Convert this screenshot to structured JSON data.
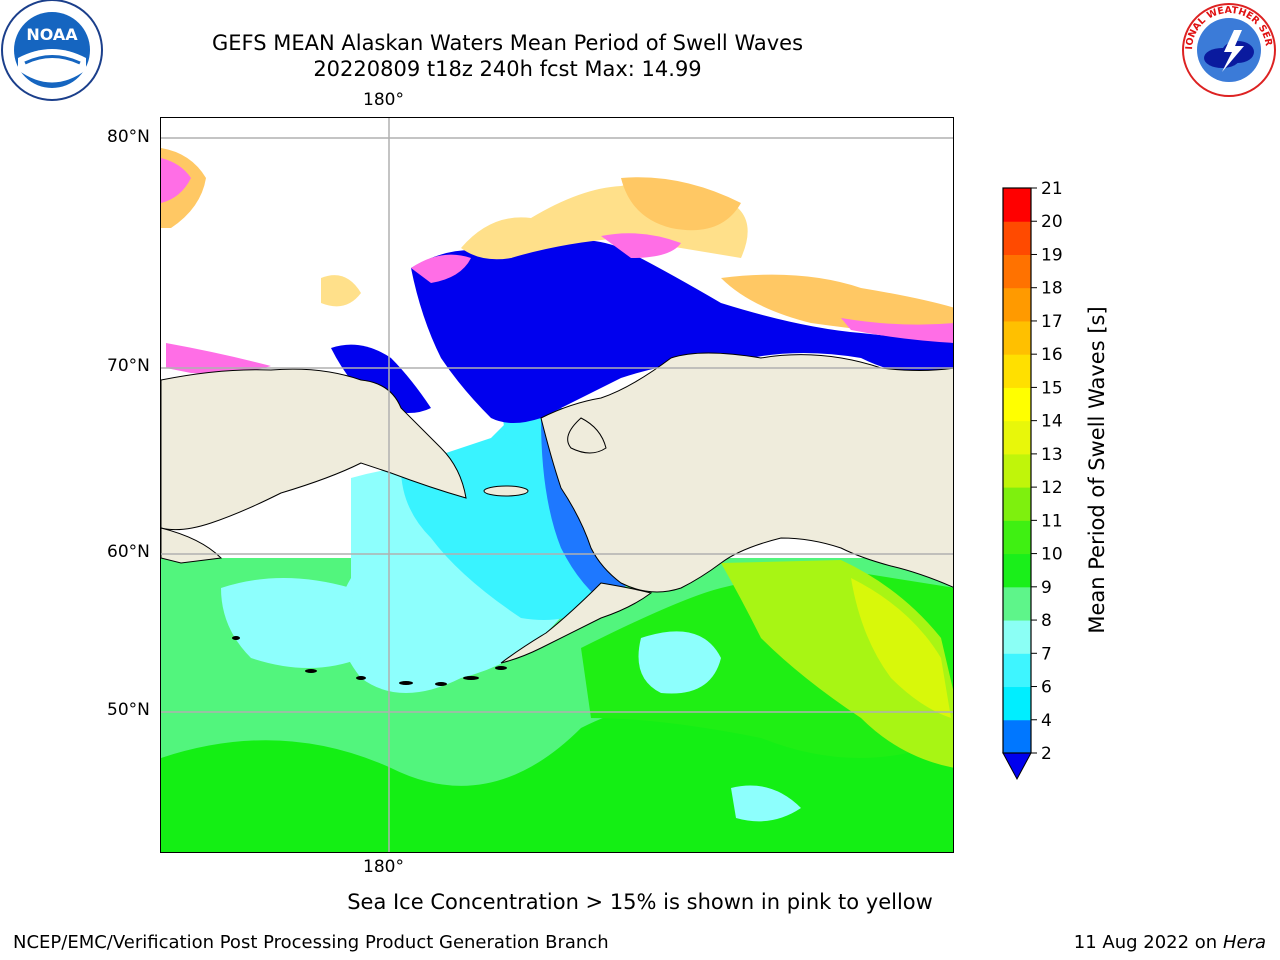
{
  "header": {
    "title_line1": "GEFS MEAN Alaskan Waters Mean Period of Swell Waves",
    "title_line2": "20220809 t18z 240h fcst   Max: 14.99"
  },
  "logos": {
    "left": {
      "name": "noaa-logo",
      "text": "NOAA"
    },
    "right": {
      "name": "nws-logo",
      "text": "NATIONAL WEATHER SERVICE"
    }
  },
  "map": {
    "lon_label_top": "180°",
    "lon_label_bottom": "180°",
    "lat_labels": [
      "80°N",
      "70°N",
      "60°N",
      "50°N"
    ],
    "colors": {
      "land": "#efecdc",
      "ice_pink": "#ff6ee6",
      "ice_orange": "#ffc864",
      "ice_yellow": "#ffe08a",
      "deep_blue": "#0000ee",
      "mid_blue": "#1e78ff",
      "cyan": "#39f3ff",
      "light_cyan": "#8dfffd",
      "light_green": "#52f57d",
      "green": "#12ee12",
      "yellow_green": "#b4f514",
      "gridline": "#b0b0b0"
    }
  },
  "colorbar": {
    "label": "Mean Period of Swell Waves [s]",
    "ticks": [
      "2",
      "4",
      "6",
      "7",
      "8",
      "9",
      "10",
      "11",
      "12",
      "13",
      "14",
      "15",
      "16",
      "17",
      "18",
      "19",
      "20",
      "21"
    ],
    "colors": [
      "#0077ff",
      "#00eeff",
      "#3ef5ff",
      "#8bfff5",
      "#5ef58a",
      "#1aef1a",
      "#3ff012",
      "#7ef00e",
      "#c0f50a",
      "#e8f70a",
      "#ffff00",
      "#ffe000",
      "#ffc000",
      "#ff9a00",
      "#ff7200",
      "#ff4a00",
      "#ff0000"
    ],
    "extend_color": "#0000ee"
  },
  "footer": {
    "sea_ice_note": "Sea Ice Concentration > 15% is shown in pink to yellow",
    "credit": "NCEP/EMC/Verification Post Processing Product Generation Branch",
    "date": "11 Aug 2022 on",
    "host": "Hera"
  }
}
